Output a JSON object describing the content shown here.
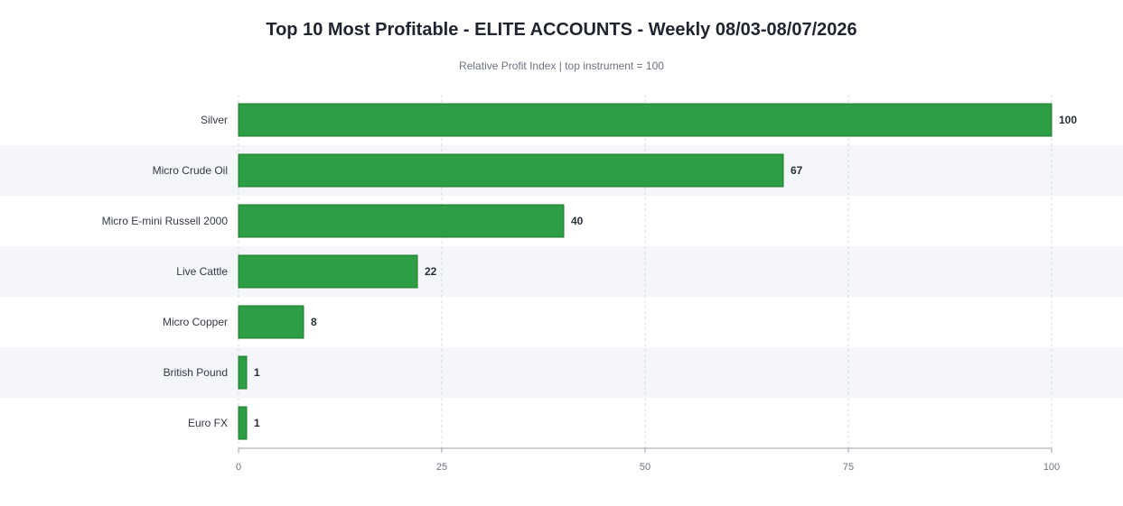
{
  "chart_data": {
    "type": "bar",
    "orientation": "horizontal",
    "title": "Top 10 Most Profitable - ELITE ACCOUNTS - Weekly 08/03-08/07/2026",
    "subtitle": "Relative Profit Index  |  top instrument = 100",
    "categories": [
      "Silver",
      "Micro Crude Oil",
      "Micro E-mini Russell 2000",
      "Live Cattle",
      "Micro Copper",
      "British Pound",
      "Euro FX"
    ],
    "values": [
      100,
      67,
      40,
      22,
      8,
      1,
      1
    ],
    "xlim": [
      0,
      100
    ],
    "xticks": [
      0,
      25,
      50,
      75,
      100
    ],
    "grid": "vertical dashed",
    "colors": {
      "bar_fill": "#2e9e44",
      "bar_stroke": "#1f7a31",
      "band": "#f4f6fa",
      "grid": "#d5d8de",
      "axis": "#9aa0a8"
    }
  }
}
